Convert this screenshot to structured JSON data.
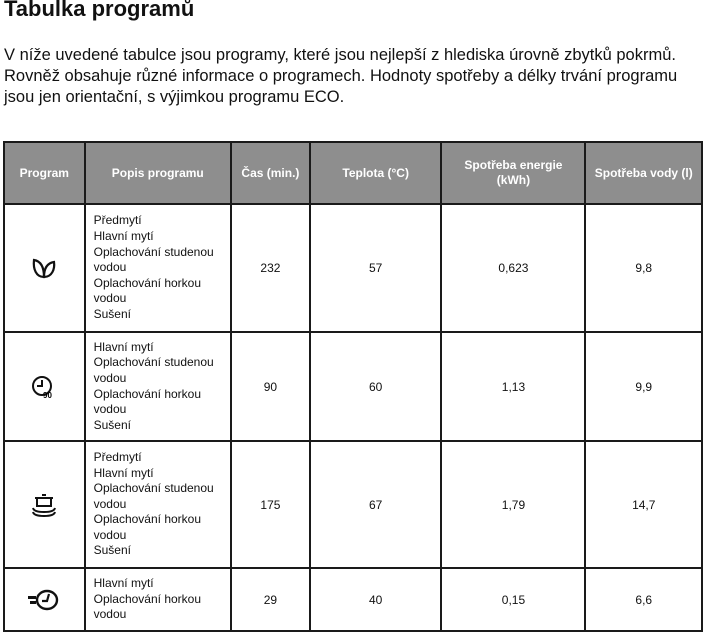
{
  "title": "Tabulka programů",
  "intro": "V níže uvedené tabulce jsou programy, které jsou nejlepší z hlediska úrovně zbytků pokrmů. Rovněž obsahuje různé informace o programech. Hodnoty spotřeby a délky trvání programu jsou jen orientační, s výjimkou programu ECO.",
  "headers": [
    "Program",
    "Popis programu",
    "Čas (min.)",
    "Teplota (°C)",
    "Spotřeba energie (kWh)",
    "Spotřeba vody (l)"
  ],
  "rows": [
    {
      "icon": "eco-leaf-icon",
      "desc": [
        "Předmytí",
        "Hlavní mytí",
        "Oplachování studenou",
        "vodou",
        "Oplachování horkou",
        "vodou",
        "Sušení"
      ],
      "time": "232",
      "temp": "57",
      "energy": "0,623",
      "water": "9,8"
    },
    {
      "icon": "clock-90-icon",
      "icon_label": "90",
      "desc": [
        "Hlavní mytí",
        "Oplachování studenou",
        "vodou",
        "Oplachování horkou",
        "vodou",
        "Sušení"
      ],
      "time": "90",
      "temp": "60",
      "energy": "1,13",
      "water": "9,9"
    },
    {
      "icon": "pot-intensive-icon",
      "desc": [
        "Předmytí",
        "Hlavní mytí",
        "Oplachování studenou",
        "vodou",
        "Oplachování horkou",
        "vodou",
        "Sušení"
      ],
      "time": "175",
      "temp": "67",
      "energy": "1,79",
      "water": "14,7"
    },
    {
      "icon": "quick-clock-icon",
      "desc": [
        "Hlavní mytí",
        "Oplachování horkou",
        "vodou"
      ],
      "time": "29",
      "temp": "40",
      "energy": "0,15",
      "water": "6,6"
    }
  ]
}
